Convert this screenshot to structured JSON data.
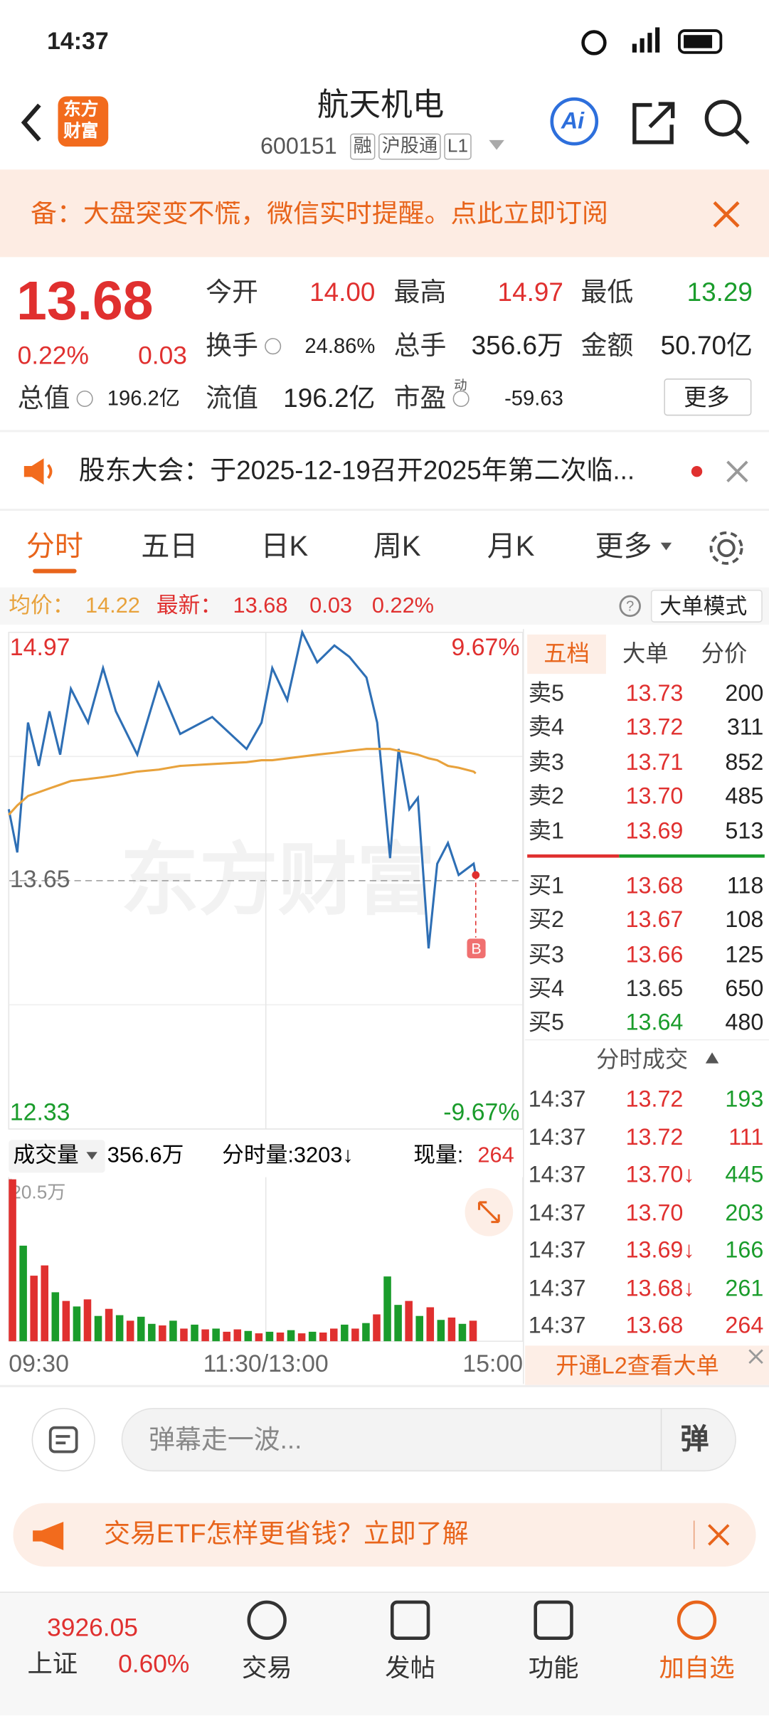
{
  "status": {
    "time": "14:37"
  },
  "header": {
    "logo": [
      "东方",
      "财富"
    ],
    "title": "航天机电",
    "code": "600151",
    "tags": [
      "融",
      "沪股通",
      "L1"
    ],
    "ai": "Ai"
  },
  "banner": {
    "text": "备：大盘突变不慌，微信实时提醒。点此立即订阅"
  },
  "quote": {
    "price": "13.68",
    "percent": "0.22%",
    "change": "0.03",
    "more": "更多",
    "fields": [
      {
        "label": "今开",
        "value": "14.00",
        "color": "#e0302f"
      },
      {
        "label": "最高",
        "value": "14.97",
        "color": "#e0302f"
      },
      {
        "label": "最低",
        "value": "13.29",
        "color": "#1a9c2b"
      },
      {
        "label": "换手",
        "value": "24.86%",
        "color": "#222222",
        "icon": true
      },
      {
        "label": "总手",
        "value": "356.6万",
        "color": "#222222"
      },
      {
        "label": "金额",
        "value": "50.70亿",
        "color": "#222222"
      },
      {
        "label": "总值",
        "value": "196.2亿",
        "color": "#222222",
        "icon": true
      },
      {
        "label": "流值",
        "value": "196.2亿",
        "color": "#222222"
      },
      {
        "label": "市盈",
        "sup": "动",
        "value": "-59.63",
        "color": "#222222",
        "icon": true
      }
    ]
  },
  "notice": {
    "text": "股东大会：于2025-12-19召开2025年第二次临..."
  },
  "tabs": [
    "分时",
    "五日",
    "日K",
    "周K",
    "月K",
    "更多"
  ],
  "info": {
    "avg_label": "均价：",
    "avg": "14.22",
    "last_label": "最新：",
    "last": "13.68",
    "change": "0.03",
    "percent": "0.22%",
    "mode": "大单模式"
  },
  "watermark": "东方财富",
  "chart_data": [
    {
      "type": "line",
      "annotation": "B",
      "x": [
        0,
        4,
        9,
        14,
        19,
        24,
        29,
        37,
        44,
        50,
        60,
        70,
        80,
        95,
        111,
        118,
        123,
        130,
        137,
        144,
        152,
        159,
        167,
        172,
        178,
        182,
        187,
        191,
        196,
        200,
        205,
        210,
        217,
        218
      ],
      "series": [
        {
          "color": "#2e6fb5",
          "values": [
            14.03,
            13.8,
            14.49,
            14.26,
            14.55,
            14.32,
            14.67,
            14.49,
            14.78,
            14.55,
            14.32,
            14.7,
            14.43,
            14.52,
            14.35,
            14.49,
            14.78,
            14.61,
            14.97,
            14.81,
            14.9,
            14.84,
            14.73,
            14.49,
            13.77,
            14.35,
            14.03,
            14.09,
            13.29,
            13.74,
            13.85,
            13.68,
            13.74,
            13.68
          ]
        },
        {
          "color": "#e8a23c",
          "values": [
            14.0,
            14.05,
            14.1,
            14.12,
            14.14,
            14.16,
            14.18,
            14.19,
            14.2,
            14.21,
            14.23,
            14.24,
            14.26,
            14.27,
            14.28,
            14.29,
            14.29,
            14.3,
            14.31,
            14.32,
            14.33,
            14.34,
            14.35,
            14.35,
            14.35,
            14.34,
            14.33,
            14.32,
            14.3,
            14.29,
            14.26,
            14.25,
            14.23,
            14.22
          ]
        }
      ],
      "xlim": [
        0,
        240
      ],
      "xticks": [
        {
          "value": 0,
          "label": "09:30"
        },
        {
          "value": 120,
          "label": "11:30/13:00"
        },
        {
          "value": 240,
          "label": "15:00"
        }
      ],
      "ylim": [
        12.33,
        14.97
      ],
      "yticks": [
        14.97,
        13.65,
        12.33
      ],
      "y2lim": [
        -9.67,
        9.67
      ],
      "y2ticks": [
        {
          "value": 9.67,
          "label": "9.67%"
        },
        {
          "value": -9.67,
          "label": "-9.67%"
        }
      ]
    },
    {
      "type": "bar",
      "label": "成交量",
      "total": "356.6万",
      "minute_vol": "分时量:3203↓",
      "now_label": "现量:",
      "now": "264",
      "x": [
        0,
        5,
        10,
        15,
        20,
        25,
        30,
        35,
        40,
        45,
        50,
        55,
        60,
        65,
        70,
        75,
        80,
        85,
        90,
        95,
        100,
        105,
        110,
        115,
        120,
        125,
        130,
        135,
        140,
        145,
        150,
        155,
        160,
        165,
        170,
        175,
        180,
        185,
        190,
        195,
        200,
        205,
        210,
        215
      ],
      "values": [
        20.5,
        12.1,
        8.3,
        9.6,
        6.2,
        5.1,
        4.4,
        5.3,
        3.2,
        4.1,
        3.3,
        2.6,
        3.1,
        2.2,
        2.0,
        2.6,
        1.6,
        2.1,
        1.5,
        1.6,
        1.2,
        1.5,
        1.3,
        1.0,
        1.2,
        1.1,
        1.4,
        1.0,
        1.2,
        1.1,
        1.6,
        2.1,
        1.6,
        2.3,
        3.4,
        8.2,
        4.6,
        5.1,
        3.2,
        4.3,
        2.7,
        3.0,
        2.2,
        2.6
      ],
      "colors": [
        "#e0302f",
        "#1a9c2b",
        "#e0302f",
        "#e0302f",
        "#1a9c2b",
        "#e0302f",
        "#1a9c2b",
        "#e0302f",
        "#1a9c2b",
        "#e0302f",
        "#1a9c2b",
        "#e0302f",
        "#1a9c2b",
        "#1a9c2b",
        "#e0302f",
        "#1a9c2b",
        "#e0302f",
        "#1a9c2b",
        "#e0302f",
        "#1a9c2b",
        "#e0302f",
        "#e0302f",
        "#1a9c2b",
        "#e0302f",
        "#1a9c2b",
        "#e0302f",
        "#1a9c2b",
        "#e0302f",
        "#1a9c2b",
        "#e0302f",
        "#e0302f",
        "#1a9c2b",
        "#e0302f",
        "#1a9c2b",
        "#e0302f",
        "#1a9c2b",
        "#1a9c2b",
        "#e0302f",
        "#1a9c2b",
        "#e0302f",
        "#1a9c2b",
        "#e0302f",
        "#1a9c2b",
        "#e0302f"
      ],
      "xlim": [
        0,
        240
      ],
      "ylim": [
        0,
        20.5
      ],
      "yticks": [
        {
          "value": 20.5,
          "label": "20.5万"
        }
      ]
    }
  ],
  "orderbook": {
    "tabs": [
      "五档",
      "大单",
      "分价"
    ],
    "asks": [
      [
        "卖5",
        "13.73",
        "200"
      ],
      [
        "卖4",
        "13.72",
        "311"
      ],
      [
        "卖3",
        "13.71",
        "852"
      ],
      [
        "卖2",
        "13.70",
        "485"
      ],
      [
        "卖1",
        "13.69",
        "513"
      ]
    ],
    "bids": [
      [
        "买1",
        "13.68",
        "118"
      ],
      [
        "买2",
        "13.67",
        "108"
      ],
      [
        "买3",
        "13.66",
        "125"
      ],
      [
        "买4",
        "13.65",
        "650"
      ],
      [
        "买5",
        "13.64",
        "480"
      ]
    ]
  },
  "trades": {
    "title": "分时成交",
    "rows": [
      {
        "time": "14:37",
        "price": "13.72",
        "vol": "193",
        "color": "#1a9c2b"
      },
      {
        "time": "14:37",
        "price": "13.72",
        "vol": "111",
        "color": "#e0302f"
      },
      {
        "time": "14:37",
        "price": "13.70↓",
        "vol": "445",
        "color": "#1a9c2b"
      },
      {
        "time": "14:37",
        "price": "13.70",
        "vol": "203",
        "color": "#1a9c2b"
      },
      {
        "time": "14:37",
        "price": "13.69↓",
        "vol": "166",
        "color": "#1a9c2b"
      },
      {
        "time": "14:37",
        "price": "13.68↓",
        "vol": "261",
        "color": "#1a9c2b"
      },
      {
        "time": "14:37",
        "price": "13.68",
        "vol": "264",
        "color": "#e0302f"
      }
    ],
    "promo": "开通L2查看大单"
  },
  "comment": {
    "placeholder": "弹幕走一波...",
    "button": "弹"
  },
  "ad": {
    "text": "交易ETF怎样更省钱？立即了解"
  },
  "nav": {
    "index": "3926.05",
    "index_name": "上证",
    "index_pct": "0.60%",
    "items": [
      "交易",
      "发帖",
      "功能",
      "加自选"
    ]
  }
}
